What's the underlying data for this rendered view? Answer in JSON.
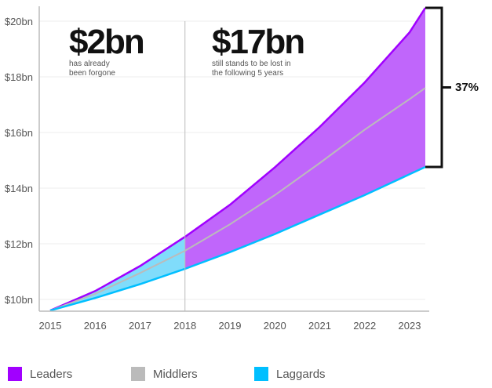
{
  "chart_data": {
    "type": "area",
    "title": "",
    "xlabel": "",
    "ylabel": "",
    "x_ticks": [
      "2015",
      "2016",
      "2017",
      "2018",
      "2019",
      "2020",
      "2021",
      "2022",
      "2023"
    ],
    "y_ticks": [
      "$10bn",
      "$12bn",
      "$14bn",
      "$16bn",
      "$18bn",
      "$20bn"
    ],
    "y_tick_values": [
      10,
      12,
      14,
      16,
      18,
      20
    ],
    "ylim": [
      9.58,
      20.6
    ],
    "xlim": [
      2014.75,
      2023.6
    ],
    "x": [
      2015,
      2016,
      2017,
      2018,
      2019,
      2020,
      2021,
      2022,
      2023,
      2023.35
    ],
    "series": [
      {
        "name": "Leaders",
        "color": "#a100ff",
        "values": [
          9.6,
          10.3,
          11.2,
          12.25,
          13.4,
          14.75,
          16.2,
          17.8,
          19.6,
          20.48
        ]
      },
      {
        "name": "Middlers",
        "color": "#bbbbbb",
        "values": [
          9.6,
          10.2,
          10.95,
          11.75,
          12.7,
          13.75,
          14.9,
          16.1,
          17.2,
          17.6
        ]
      },
      {
        "name": "Laggards",
        "color": "#00bfff",
        "values": [
          9.6,
          10.05,
          10.55,
          11.1,
          11.7,
          12.35,
          13.05,
          13.75,
          14.5,
          14.76
        ]
      }
    ],
    "divider_year": 2018,
    "annotations": {
      "past_value": "$2bn",
      "past_text_1": "has already",
      "past_text_2": "been forgone",
      "future_value": "$17bn",
      "future_text_1": "still stands to be lost in",
      "future_text_2": "the following 5 years",
      "gap_label": "37%"
    },
    "legend_position": "bottom",
    "grid": true
  }
}
